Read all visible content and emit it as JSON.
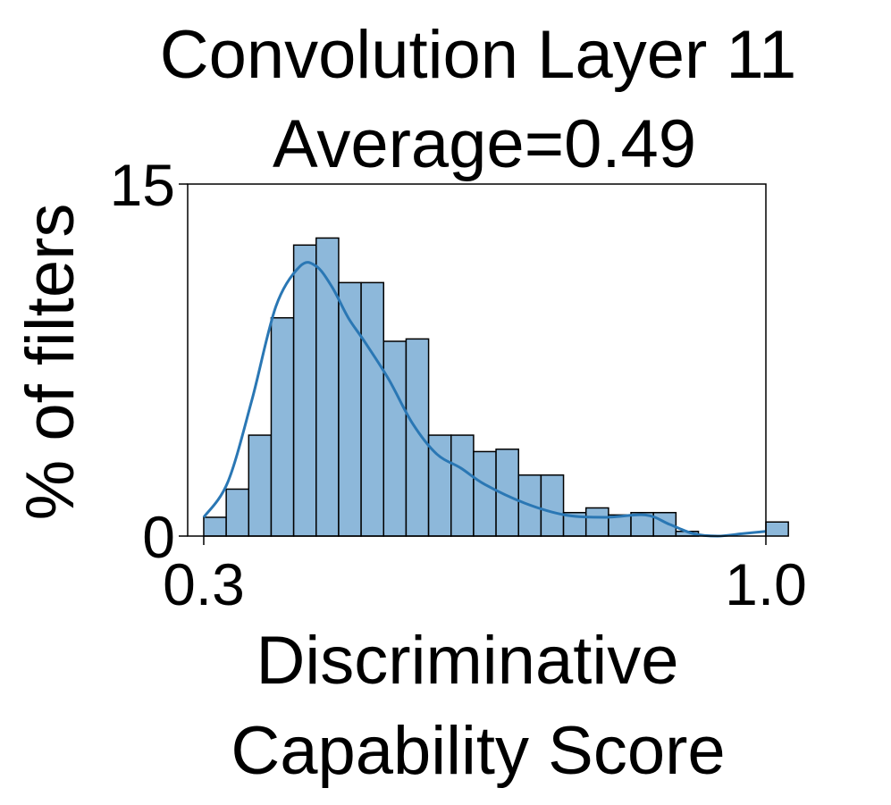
{
  "chart_data": {
    "type": "bar",
    "title": "Convolution Layer 11",
    "subtitle": "Average=0.49",
    "xlabel_line1": "Discriminative",
    "xlabel_line2": "Capability Score",
    "ylabel": "% of filters",
    "xlim": [
      0.28,
      1.0
    ],
    "ylim": [
      0,
      15
    ],
    "x_ticks": [
      {
        "value": 0.3,
        "label": "0.3"
      },
      {
        "value": 1.0,
        "label": "1.0"
      }
    ],
    "y_ticks": [
      {
        "value": 0,
        "label": "0"
      },
      {
        "value": 15,
        "label": "15"
      }
    ],
    "bin_start": 0.3,
    "bin_width": 0.028,
    "values": [
      0.8,
      2.0,
      4.3,
      9.3,
      12.4,
      12.7,
      10.8,
      10.8,
      8.3,
      8.4,
      4.3,
      4.3,
      3.6,
      3.7,
      2.6,
      2.6,
      1.0,
      1.2,
      0.9,
      1.0,
      1.0,
      0.2,
      0.0,
      0.0,
      0.0,
      0.6
    ],
    "kde_curve": {
      "x": [
        0.3,
        0.33,
        0.36,
        0.39,
        0.42,
        0.44,
        0.46,
        0.48,
        0.5,
        0.53,
        0.56,
        0.59,
        0.62,
        0.65,
        0.7,
        0.75,
        0.8,
        0.85,
        0.88,
        0.91,
        0.94,
        0.97,
        1.0
      ],
      "y": [
        0.8,
        2.3,
        5.8,
        9.8,
        11.5,
        11.5,
        10.6,
        9.3,
        8.3,
        6.7,
        4.8,
        3.5,
        2.9,
        2.2,
        1.4,
        0.9,
        0.8,
        0.9,
        0.5,
        0.1,
        0.0,
        0.1,
        0.2
      ]
    },
    "colors": {
      "bar_fill": "#8db8da",
      "bar_edge": "#000000",
      "kde_line": "#2a77b4"
    },
    "grid": false,
    "legend": "none"
  }
}
